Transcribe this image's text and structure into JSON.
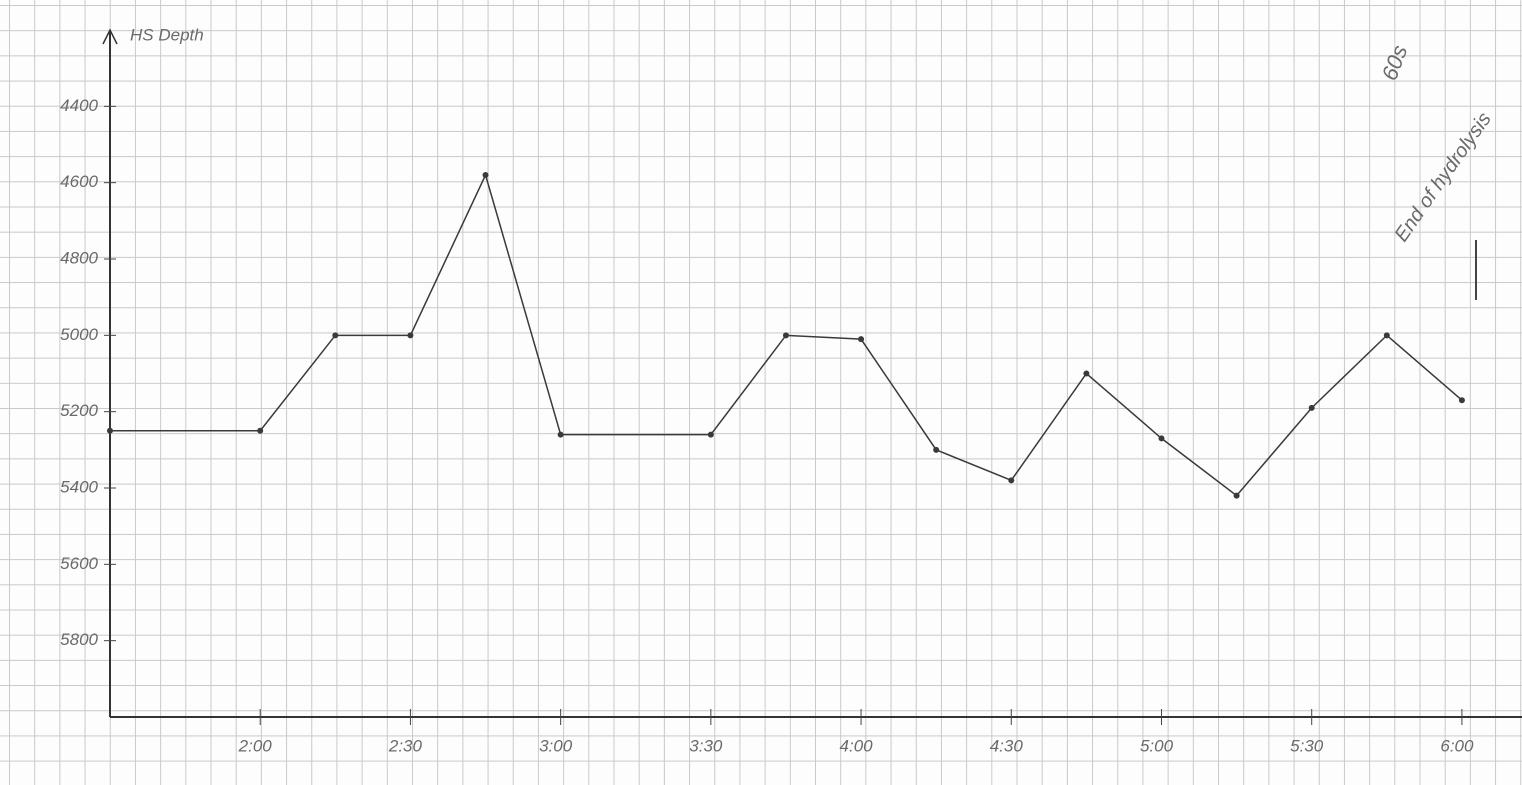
{
  "chart_data": {
    "type": "line",
    "ylabel": "HS Depth",
    "x": [
      1.5,
      2.0,
      2.25,
      2.5,
      2.75,
      3.0,
      3.5,
      3.75,
      4.0,
      4.25,
      4.5,
      4.75,
      5.0,
      5.25,
      5.5,
      5.75,
      6.0
    ],
    "values": [
      5250,
      5250,
      5000,
      5000,
      4580,
      5260,
      5260,
      5000,
      5010,
      5300,
      5380,
      5100,
      5270,
      5420,
      5190,
      5000,
      5170
    ],
    "color": "#3a3a3a",
    "xlim": [
      1.5,
      6.2
    ],
    "xticks": [
      {
        "value": 2.0,
        "label": "2:00"
      },
      {
        "value": 2.5,
        "label": "2:30"
      },
      {
        "value": 3.0,
        "label": "3:00"
      },
      {
        "value": 3.5,
        "label": "3:30"
      },
      {
        "value": 4.0,
        "label": "4:00"
      },
      {
        "value": 4.5,
        "label": "4:30"
      },
      {
        "value": 5.0,
        "label": "5:00"
      },
      {
        "value": 5.5,
        "label": "5:30"
      },
      {
        "value": 6.0,
        "label": "6:00"
      }
    ],
    "ylim": [
      6000,
      4200
    ],
    "yticks": [
      4400,
      4600,
      4800,
      5000,
      5200,
      5400,
      5600,
      5800
    ],
    "annotations": [
      "60s",
      "End of hydrolysis"
    ]
  }
}
